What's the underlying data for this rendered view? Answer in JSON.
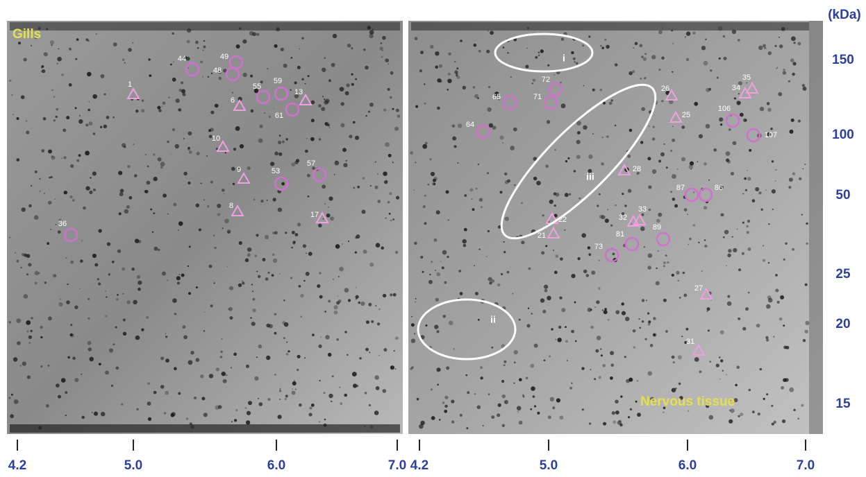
{
  "y_axis": {
    "unit": "(kDa)",
    "labels": [
      "150",
      "100",
      "50",
      "25",
      "20",
      "15"
    ]
  },
  "panels": [
    {
      "title": "Gills",
      "x_axis_labels": [
        "4.2",
        "5.0",
        "6.0",
        "7.0"
      ],
      "spots": [
        {
          "label": "44",
          "shape": "circle"
        },
        {
          "label": "49",
          "shape": "circle"
        },
        {
          "label": "48",
          "shape": "circle"
        },
        {
          "label": "1",
          "shape": "triangle"
        },
        {
          "label": "55",
          "shape": "circle"
        },
        {
          "label": "59",
          "shape": "circle"
        },
        {
          "label": "13",
          "shape": "triangle"
        },
        {
          "label": "6",
          "shape": "triangle"
        },
        {
          "label": "61",
          "shape": "circle"
        },
        {
          "label": "10",
          "shape": "triangle"
        },
        {
          "label": "9",
          "shape": "triangle"
        },
        {
          "label": "53",
          "shape": "circle"
        },
        {
          "label": "57",
          "shape": "circle"
        },
        {
          "label": "8",
          "shape": "triangle"
        },
        {
          "label": "17",
          "shape": "triangle"
        },
        {
          "label": "36",
          "shape": "circle"
        }
      ]
    },
    {
      "title": "Nervous tissue",
      "x_axis_labels": [
        "4.2",
        "5.0",
        "6.0",
        "7.0"
      ],
      "spots": [
        {
          "label": "72",
          "shape": "circle"
        },
        {
          "label": "65",
          "shape": "circle"
        },
        {
          "label": "71",
          "shape": "circle"
        },
        {
          "label": "64",
          "shape": "circle"
        },
        {
          "label": "26",
          "shape": "triangle"
        },
        {
          "label": "35",
          "shape": "triangle"
        },
        {
          "label": "34",
          "shape": "triangle"
        },
        {
          "label": "25",
          "shape": "triangle"
        },
        {
          "label": "106",
          "shape": "circle"
        },
        {
          "label": "107",
          "shape": "circle"
        },
        {
          "label": "28",
          "shape": "triangle"
        },
        {
          "label": "87",
          "shape": "circle"
        },
        {
          "label": "86",
          "shape": "circle"
        },
        {
          "label": "22",
          "shape": "triangle"
        },
        {
          "label": "21",
          "shape": "triangle"
        },
        {
          "label": "32",
          "shape": "triangle"
        },
        {
          "label": "33",
          "shape": "triangle"
        },
        {
          "label": "89",
          "shape": "circle"
        },
        {
          "label": "81",
          "shape": "circle"
        },
        {
          "label": "73",
          "shape": "circle"
        },
        {
          "label": "27",
          "shape": "triangle"
        },
        {
          "label": "31",
          "shape": "triangle"
        }
      ],
      "regions": [
        "i",
        "ii",
        "iii"
      ]
    }
  ]
}
